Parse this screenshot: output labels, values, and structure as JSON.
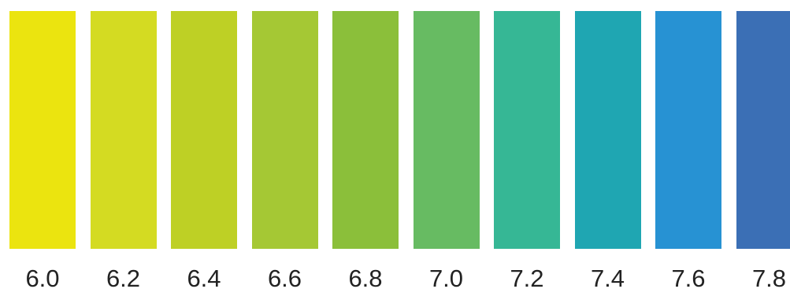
{
  "scale": {
    "items": [
      {
        "label": "6.0",
        "color": "#ebe40f"
      },
      {
        "label": "6.2",
        "color": "#d4db22"
      },
      {
        "label": "6.4",
        "color": "#bed025"
      },
      {
        "label": "6.6",
        "color": "#a5c834"
      },
      {
        "label": "6.8",
        "color": "#8bbf3a"
      },
      {
        "label": "7.0",
        "color": "#67bb62"
      },
      {
        "label": "7.2",
        "color": "#36b795"
      },
      {
        "label": "7.4",
        "color": "#1fa6b2"
      },
      {
        "label": "7.6",
        "color": "#2792d3"
      },
      {
        "label": "7.8",
        "color": "#3b6fb5"
      }
    ]
  }
}
